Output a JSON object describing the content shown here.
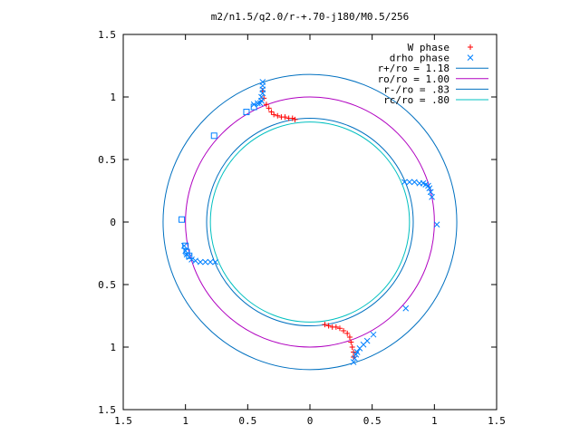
{
  "chart_data": {
    "type": "scatter",
    "title": "m2/n1.5/q2.0/r-+.70-j180/M0.5/256",
    "xlabel": "",
    "ylabel": "",
    "xlim": [
      -1.5,
      1.5
    ],
    "ylim": [
      -1.5,
      1.5
    ],
    "grid": false,
    "legend_position": "top-right",
    "x_ticks": [
      -1.5,
      -1,
      -0.5,
      0,
      0.5,
      1,
      1.5
    ],
    "y_ticks": [
      -1.5,
      -1,
      -0.5,
      0,
      0.5,
      1,
      1.5
    ],
    "x_tick_labels": [
      "1.5",
      "1",
      "0.5",
      "0",
      "0.5",
      "1",
      "1.5"
    ],
    "y_tick_labels": [
      "1.5",
      "1",
      "0.5",
      "0",
      "0.5",
      "1",
      "1.5"
    ],
    "series": [
      {
        "name": "W phase",
        "kind": "points",
        "marker": "plus",
        "color": "#ff0000",
        "points": [
          [
            -0.38,
            1.05
          ],
          [
            -0.37,
            0.99
          ],
          [
            -0.35,
            0.94
          ],
          [
            -0.33,
            0.91
          ],
          [
            -0.31,
            0.88
          ],
          [
            -0.29,
            0.86
          ],
          [
            -0.26,
            0.85
          ],
          [
            -0.23,
            0.84
          ],
          [
            -0.2,
            0.84
          ],
          [
            -0.17,
            0.83
          ],
          [
            -0.14,
            0.83
          ],
          [
            -0.12,
            0.82
          ],
          [
            0.12,
            -0.82
          ],
          [
            0.15,
            -0.83
          ],
          [
            0.18,
            -0.84
          ],
          [
            0.21,
            -0.84
          ],
          [
            0.24,
            -0.85
          ],
          [
            0.27,
            -0.87
          ],
          [
            0.3,
            -0.89
          ],
          [
            0.32,
            -0.92
          ],
          [
            0.33,
            -0.96
          ],
          [
            0.34,
            -1.0
          ],
          [
            0.35,
            -1.04
          ],
          [
            0.35,
            -1.08
          ]
        ]
      },
      {
        "name": "drho phase",
        "kind": "points",
        "marker": "cross",
        "color": "#0080ff",
        "points": [
          [
            -0.38,
            1.12
          ],
          [
            -0.38,
            1.09
          ],
          [
            -0.38,
            1.06
          ],
          [
            -0.38,
            1.03
          ],
          [
            -0.39,
            1.0
          ],
          [
            -0.39,
            0.97
          ],
          [
            -0.4,
            0.95
          ],
          [
            -0.42,
            0.95
          ],
          [
            -0.45,
            0.94
          ],
          [
            0.76,
            0.32
          ],
          [
            0.8,
            0.32
          ],
          [
            0.84,
            0.32
          ],
          [
            0.88,
            0.31
          ],
          [
            0.91,
            0.31
          ],
          [
            0.93,
            0.3
          ],
          [
            0.95,
            0.29
          ],
          [
            0.96,
            0.27
          ],
          [
            0.97,
            0.24
          ],
          [
            0.98,
            0.2
          ],
          [
            1.02,
            -0.02
          ],
          [
            -0.76,
            -0.32
          ],
          [
            -0.8,
            -0.32
          ],
          [
            -0.84,
            -0.32
          ],
          [
            -0.88,
            -0.32
          ],
          [
            -0.92,
            -0.31
          ],
          [
            -0.95,
            -0.3
          ],
          [
            -0.97,
            -0.28
          ],
          [
            -0.99,
            -0.26
          ],
          [
            -1.0,
            -0.23
          ],
          [
            -1.01,
            -0.19
          ],
          [
            0.35,
            -1.12
          ],
          [
            0.36,
            -1.09
          ],
          [
            0.37,
            -1.06
          ],
          [
            0.38,
            -1.04
          ],
          [
            0.4,
            -1.01
          ],
          [
            0.43,
            -0.98
          ],
          [
            0.46,
            -0.95
          ],
          [
            0.51,
            -0.9
          ],
          [
            0.77,
            -0.69
          ]
        ]
      },
      {
        "name": "",
        "kind": "points",
        "marker": "square",
        "color": "#0080ff",
        "points": [
          [
            -0.77,
            0.69
          ],
          [
            -0.51,
            0.88
          ],
          [
            -0.45,
            0.92
          ],
          [
            -1.03,
            0.02
          ],
          [
            -1.0,
            -0.19
          ],
          [
            -0.99,
            -0.24
          ],
          [
            -0.97,
            -0.27
          ]
        ]
      },
      {
        "name": "r+/ro = 1.18",
        "kind": "circle",
        "radius": 1.18,
        "color": "#0070c0"
      },
      {
        "name": "ro/ro = 1.00",
        "kind": "circle",
        "radius": 1.0,
        "color": "#b000c0"
      },
      {
        "name": "r-/ro = .83",
        "kind": "circle",
        "radius": 0.83,
        "color": "#0070c0"
      },
      {
        "name": "rc/ro = .80",
        "kind": "circle",
        "radius": 0.8,
        "color": "#00c0c0"
      }
    ]
  }
}
